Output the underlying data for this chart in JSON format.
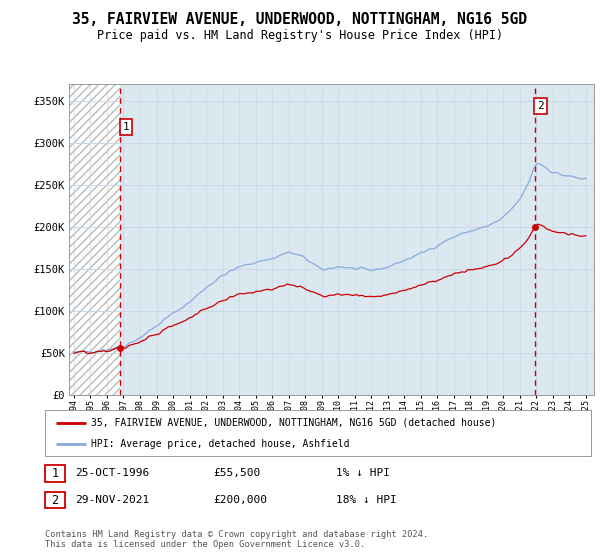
{
  "title": "35, FAIRVIEW AVENUE, UNDERWOOD, NOTTINGHAM, NG16 5GD",
  "subtitle": "Price paid vs. HM Land Registry's House Price Index (HPI)",
  "ylabel_ticks": [
    "£0",
    "£50K",
    "£100K",
    "£150K",
    "£200K",
    "£250K",
    "£300K",
    "£350K"
  ],
  "ytick_values": [
    0,
    50000,
    100000,
    150000,
    200000,
    250000,
    300000,
    350000
  ],
  "ylim": [
    0,
    370000
  ],
  "xlim_start": 1993.7,
  "xlim_end": 2025.5,
  "sale1_x": 1996.81,
  "sale1_y": 55500,
  "sale1_label": "1",
  "sale2_x": 2021.91,
  "sale2_y": 200000,
  "sale2_label": "2",
  "sale_color": "#cc0000",
  "hpi_color": "#88aadd",
  "grid_color": "#c8d8e8",
  "hatch_color": "#bbbbbb",
  "plot_bg_color": "#dce8f0",
  "legend_line1": "35, FAIRVIEW AVENUE, UNDERWOOD, NOTTINGHAM, NG16 5GD (detached house)",
  "legend_line2": "HPI: Average price, detached house, Ashfield",
  "table_rows": [
    {
      "num": "1",
      "date": "25-OCT-1996",
      "price": "£55,500",
      "hpi": "1% ↓ HPI"
    },
    {
      "num": "2",
      "date": "29-NOV-2021",
      "price": "£200,000",
      "hpi": "18% ↓ HPI"
    }
  ],
  "footnote": "Contains HM Land Registry data © Crown copyright and database right 2024.\nThis data is licensed under the Open Government Licence v3.0.",
  "background_color": "#ffffff"
}
